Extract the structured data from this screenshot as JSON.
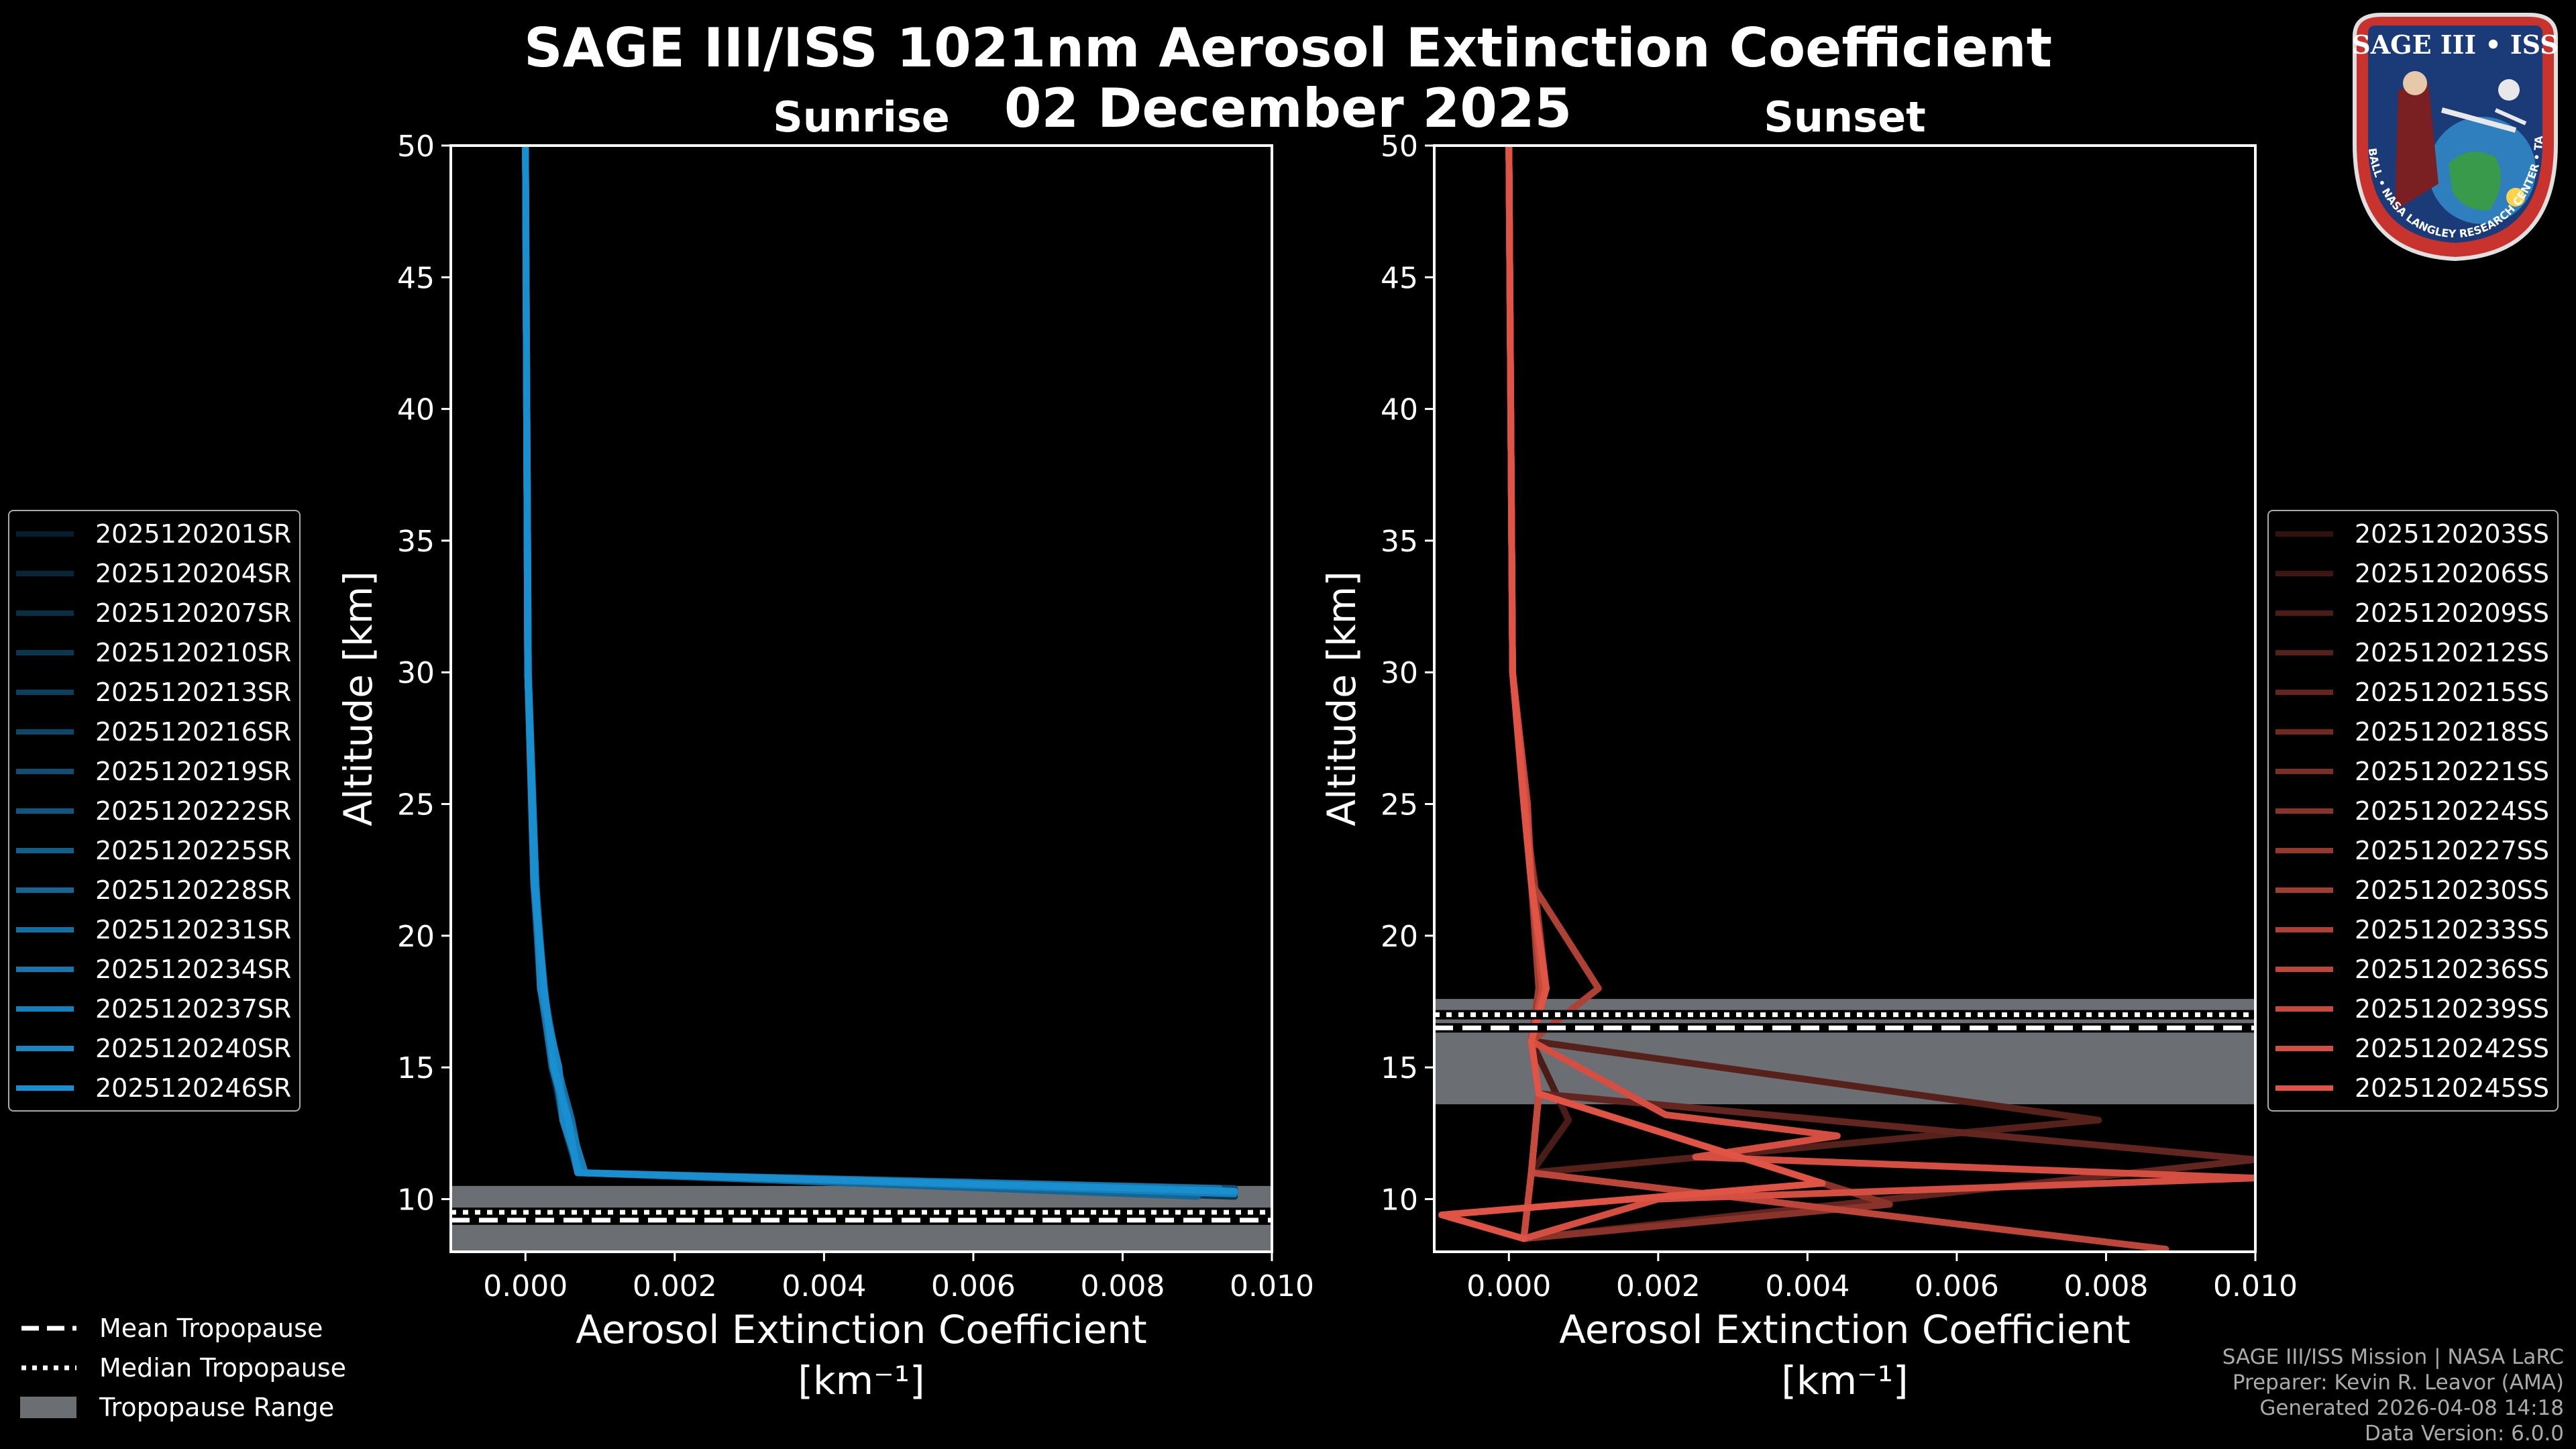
{
  "title_line1": "SAGE III/ISS 1021nm Aerosol Extinction Coefficient",
  "title_line2": "02 December 2025",
  "colors": {
    "sunrise": "#1a8fd0",
    "sunset": "#e05445",
    "tropopause_range": "#6b6e72",
    "background": "#000000"
  },
  "panels": [
    {
      "subtitle": "Sunrise",
      "ylabel": "Altitude [km]",
      "xlabel_line1": "Aerosol Extinction Coefficient",
      "xlabel_line2": "[km⁻¹]"
    },
    {
      "subtitle": "Sunset",
      "ylabel": "Altitude [km]",
      "xlabel_line1": "Aerosol Extinction Coefficient",
      "xlabel_line2": "[km⁻¹]"
    }
  ],
  "chart_data": [
    {
      "type": "line",
      "title": "Sunrise",
      "xlabel": "Aerosol Extinction Coefficient [km⁻¹]",
      "ylabel": "Altitude [km]",
      "xlim": [
        -0.001,
        0.01
      ],
      "ylim": [
        8,
        50
      ],
      "xticks": [
        "0.000",
        "0.002",
        "0.004",
        "0.006",
        "0.008",
        "0.010"
      ],
      "yticks": [
        "10",
        "15",
        "20",
        "25",
        "30",
        "35",
        "40",
        "45",
        "50"
      ],
      "tropopause": {
        "mean": 9.2,
        "median": 9.5,
        "range": [
          8.0,
          10.5
        ]
      },
      "series": [
        {
          "name": "2025120201SR",
          "x": [
            0.0,
            3e-05,
            0.00012,
            0.0002,
            0.00035,
            0.0005,
            0.0007,
            0.0095
          ],
          "y": [
            50,
            30,
            22,
            18,
            15,
            13,
            11,
            10.3
          ]
        },
        {
          "name": "2025120204SR",
          "x": [
            0.0,
            4e-05,
            0.00013,
            0.00022,
            0.0004,
            0.00055,
            0.0008,
            0.0095
          ],
          "y": [
            50,
            30,
            22,
            18,
            15,
            13,
            11,
            10.2
          ]
        },
        {
          "name": "2025120207SR",
          "x": [
            0.0,
            3e-05,
            0.00011,
            0.00024,
            0.00038,
            0.0006,
            0.00075,
            0.009
          ],
          "y": [
            50,
            30,
            22,
            18,
            15,
            13,
            11,
            10.4
          ]
        },
        {
          "name": "2025120210SR",
          "x": [
            0.0,
            3e-05,
            0.00014,
            0.0002,
            0.00042,
            0.0005,
            0.0007,
            0.0095
          ],
          "y": [
            50,
            30,
            22,
            18,
            15,
            13,
            11,
            10.1
          ]
        },
        {
          "name": "2025120213SR",
          "x": [
            0.0,
            4e-05,
            0.00012,
            0.00026,
            0.00036,
            0.00058,
            0.0008,
            0.009
          ],
          "y": [
            50,
            30,
            22,
            18,
            15,
            13,
            11,
            10.3
          ]
        },
        {
          "name": "2025120216SR",
          "x": [
            0.0,
            3e-05,
            0.00013,
            0.00021,
            0.0004,
            0.00052,
            0.0007,
            0.0093
          ],
          "y": [
            50,
            30,
            22,
            18,
            15,
            13,
            11,
            10.2
          ]
        },
        {
          "name": "2025120219SR",
          "x": [
            0.0,
            3e-05,
            0.00012,
            0.00023,
            0.00044,
            0.0006,
            0.00078,
            0.0095
          ],
          "y": [
            50,
            30,
            22,
            18,
            15,
            13,
            11,
            10.4
          ]
        },
        {
          "name": "2025120222SR",
          "x": [
            0.0,
            4e-05,
            0.00011,
            0.0002,
            0.00037,
            0.00054,
            0.0007,
            0.0092
          ],
          "y": [
            50,
            30,
            22,
            18,
            15,
            13,
            11,
            10.3
          ]
        },
        {
          "name": "2025120225SR",
          "x": [
            0.0,
            3e-05,
            0.00014,
            0.00025,
            0.00041,
            0.00056,
            0.0008,
            0.0095
          ],
          "y": [
            50,
            30,
            22,
            18,
            15,
            13,
            11,
            10.2
          ]
        },
        {
          "name": "2025120228SR",
          "x": [
            0.0,
            3e-05,
            0.00012,
            0.00022,
            0.00039,
            0.0005,
            0.00072,
            0.009
          ],
          "y": [
            50,
            30,
            22,
            18,
            15,
            13,
            11,
            10.1
          ]
        },
        {
          "name": "2025120231SR",
          "x": [
            0.0,
            4e-05,
            0.00013,
            0.00024,
            0.00043,
            0.00062,
            0.00076,
            0.0095
          ],
          "y": [
            50,
            30,
            22,
            18,
            15,
            13,
            11,
            10.3
          ]
        },
        {
          "name": "2025120234SR",
          "x": [
            0.0,
            3e-05,
            0.00012,
            0.00021,
            0.00036,
            0.00055,
            0.0007,
            0.0093
          ],
          "y": [
            50,
            30,
            22,
            18,
            15,
            13,
            11,
            10.4
          ]
        },
        {
          "name": "2025120237SR",
          "x": [
            0.0,
            3e-05,
            0.00011,
            0.00023,
            0.0004,
            0.00058,
            0.0008,
            0.0095
          ],
          "y": [
            50,
            30,
            22,
            18,
            15,
            13,
            11,
            10.2
          ]
        },
        {
          "name": "2025120240SR",
          "x": [
            0.0,
            4e-05,
            0.00014,
            0.0002,
            0.00045,
            0.0005,
            0.00074,
            0.0094
          ],
          "y": [
            50,
            30,
            22,
            18,
            15,
            13,
            11,
            10.3
          ]
        },
        {
          "name": "2025120246SR",
          "x": [
            0.0,
            3e-05,
            0.00012,
            0.00025,
            0.00038,
            0.00057,
            0.0007,
            0.0095
          ],
          "y": [
            50,
            30,
            22,
            18,
            15,
            13,
            11,
            10.3
          ]
        }
      ]
    },
    {
      "type": "line",
      "title": "Sunset",
      "xlabel": "Aerosol Extinction Coefficient [km⁻¹]",
      "ylabel": "Altitude [km]",
      "xlim": [
        -0.001,
        0.01
      ],
      "ylim": [
        8,
        50
      ],
      "xticks": [
        "0.000",
        "0.002",
        "0.004",
        "0.006",
        "0.008",
        "0.010"
      ],
      "yticks": [
        "10",
        "15",
        "20",
        "25",
        "30",
        "35",
        "40",
        "45",
        "50"
      ],
      "tropopause": {
        "mean": 16.5,
        "median": 17.0,
        "range": [
          13.6,
          17.6
        ]
      },
      "series": [
        {
          "name": "2025120203SS",
          "x": [
            0.0,
            5e-05,
            0.0002,
            0.0003,
            0.00045,
            0.0003,
            0.0004,
            0.0003,
            0.0002
          ],
          "y": [
            50,
            30,
            25,
            22,
            18,
            16,
            14,
            11,
            8.5
          ]
        },
        {
          "name": "2025120206SS",
          "x": [
            0.0,
            5e-05,
            0.00025,
            0.0003,
            0.0005,
            0.0003,
            0.0004,
            0.0003,
            0.0002
          ],
          "y": [
            50,
            30,
            25,
            22,
            18,
            16,
            14,
            11,
            8.5
          ]
        },
        {
          "name": "2025120209SS",
          "x": [
            0.0,
            5e-05,
            0.0002,
            0.00035,
            0.0004,
            0.0003,
            0.0008,
            0.0003,
            0.0002
          ],
          "y": [
            50,
            30,
            25,
            22,
            18,
            16,
            13,
            11,
            8.5
          ]
        },
        {
          "name": "2025120212SS",
          "x": [
            0.0,
            5e-05,
            0.00022,
            0.0003,
            0.00048,
            0.0003,
            0.0079,
            0.0003,
            0.0002
          ],
          "y": [
            50,
            30,
            25,
            22,
            18,
            16,
            13,
            11,
            8.5
          ]
        },
        {
          "name": "2025120215SS",
          "x": [
            0.0,
            5e-05,
            0.0002,
            0.0003,
            0.0005,
            0.0003,
            0.0004,
            0.01,
            0.0002
          ],
          "y": [
            50,
            30,
            25,
            22,
            18,
            16,
            14,
            11.5,
            8.5
          ]
        },
        {
          "name": "2025120218SS",
          "x": [
            0.0,
            5e-05,
            0.00024,
            0.00032,
            0.00042,
            0.0003,
            0.0004,
            0.0003,
            0.0002
          ],
          "y": [
            50,
            30,
            25,
            22,
            18,
            16,
            14,
            11,
            8.5
          ]
        },
        {
          "name": "2025120221SS",
          "x": [
            0.0,
            5e-05,
            0.0002,
            0.0003,
            0.0005,
            0.0003,
            0.0004,
            0.0003,
            0.0002
          ],
          "y": [
            50,
            30,
            25,
            22,
            18,
            16,
            14,
            11,
            8.5
          ]
        },
        {
          "name": "2025120224SS",
          "x": [
            0.0,
            5e-05,
            0.00022,
            0.0003,
            0.00045,
            0.0003,
            0.0004,
            0.0051,
            0.0002
          ],
          "y": [
            50,
            30,
            25,
            22,
            18,
            16,
            14,
            9.8,
            8.5
          ]
        },
        {
          "name": "2025120227SS",
          "x": [
            0.0,
            5e-05,
            0.0002,
            0.00034,
            0.0005,
            0.0003,
            0.0004,
            0.0003,
            0.0002
          ],
          "y": [
            50,
            30,
            25,
            22,
            18,
            16,
            14,
            11,
            8.5
          ]
        },
        {
          "name": "2025120230SS",
          "x": [
            0.0,
            5e-05,
            0.00023,
            0.0003,
            0.0004,
            0.0003,
            0.0004,
            0.0003,
            0.0002
          ],
          "y": [
            50,
            30,
            25,
            22,
            18,
            16,
            14,
            11,
            8.5
          ]
        },
        {
          "name": "2025120233SS",
          "x": [
            0.0,
            5e-05,
            0.0002,
            0.0003,
            0.0012,
            0.0003,
            0.0004,
            0.0003,
            0.0002
          ],
          "y": [
            50,
            30,
            25,
            22,
            18,
            16,
            14,
            11,
            8.5
          ]
        },
        {
          "name": "2025120236SS",
          "x": [
            0.0,
            5e-05,
            0.00025,
            0.0003,
            0.0005,
            0.0003,
            0.0004,
            0.0003,
            0.0088
          ],
          "y": [
            50,
            30,
            25,
            22,
            18,
            16,
            14,
            11,
            8.1
          ]
        },
        {
          "name": "2025120239SS",
          "x": [
            0.0,
            5e-05,
            0.0002,
            0.0003,
            0.00045,
            0.0003,
            0.0004,
            0.0003,
            0.0002
          ],
          "y": [
            50,
            30,
            25,
            22,
            18,
            16,
            14,
            11,
            8.5
          ]
        },
        {
          "name": "2025120242SS",
          "x": [
            0.0,
            5e-05,
            0.00022,
            0.0003,
            0.0005,
            0.0003,
            0.0021,
            0.0044,
            0.0025,
            0.01,
            0.002,
            0.0002
          ],
          "y": [
            50,
            30,
            25,
            22,
            18,
            16,
            13.2,
            12.4,
            11.6,
            10.8,
            10.0,
            8.5
          ]
        },
        {
          "name": "2025120245SS",
          "x": [
            0.0,
            5e-05,
            0.0002,
            0.0003,
            0.0005,
            0.0003,
            0.0004,
            0.0042,
            -0.0009,
            0.0002
          ],
          "y": [
            50,
            30,
            25,
            22,
            18,
            16,
            14,
            10.6,
            9.4,
            8.5
          ]
        }
      ]
    }
  ],
  "legend_bottom": {
    "mean": "Mean Tropopause",
    "median": "Median Tropopause",
    "range": "Tropopause Range"
  },
  "logo": {
    "top_text": "SAGE III • ISS",
    "ring_text": "BALL • NASA LANGLEY RESEARCH CENTER • TAS-I • ESA"
  },
  "credits": {
    "line1": "SAGE III/ISS Mission | NASA LaRC",
    "line2": "Preparer: Kevin R. Leavor (AMA)",
    "line3": "Generated 2026-04-08 14:18",
    "line4": "Data Version: 6.0.0"
  }
}
